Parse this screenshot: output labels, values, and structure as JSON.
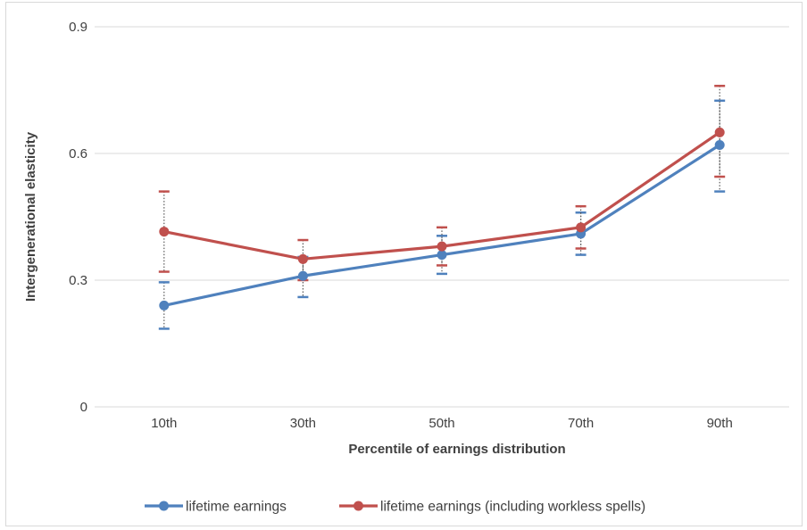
{
  "chart_data": {
    "type": "line",
    "categories": [
      "10th",
      "30th",
      "50th",
      "70th",
      "90th"
    ],
    "xlabel": "Percentile of earnings distribution",
    "ylabel": "Intergenerational elasticity",
    "ylim": [
      0,
      0.9
    ],
    "yticks": [
      0,
      0.3,
      0.6,
      0.9
    ],
    "ytick_labels": [
      "0",
      "0.3",
      "0.6",
      "0.9"
    ],
    "grid": true,
    "legend_position": "bottom",
    "series": [
      {
        "name": "lifetime earnings",
        "color": "#4f81bd",
        "values": [
          0.24,
          0.31,
          0.36,
          0.41,
          0.62
        ],
        "error_low": [
          0.185,
          0.26,
          0.315,
          0.36,
          0.51
        ],
        "error_high": [
          0.295,
          0.355,
          0.405,
          0.46,
          0.725
        ]
      },
      {
        "name": "lifetime earnings (including workless spells)",
        "color": "#c0504d",
        "values": [
          0.415,
          0.35,
          0.38,
          0.425,
          0.65
        ],
        "error_low": [
          0.32,
          0.3,
          0.335,
          0.375,
          0.545
        ],
        "error_high": [
          0.51,
          0.395,
          0.425,
          0.475,
          0.76
        ]
      }
    ]
  }
}
